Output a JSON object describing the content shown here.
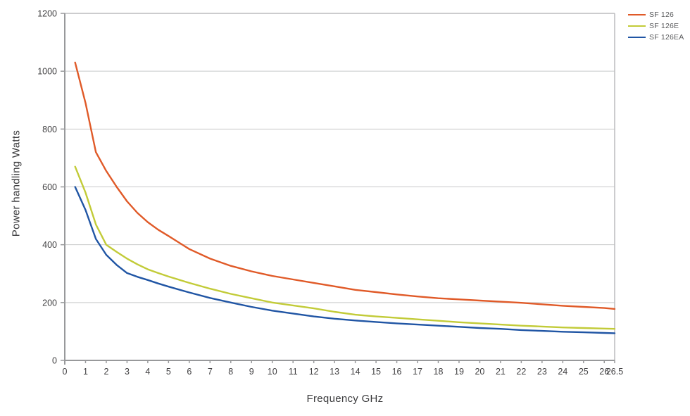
{
  "chart_data": {
    "type": "line",
    "title": "",
    "xlabel": "Frequency GHz",
    "ylabel": "Power handling Watts",
    "xlim": [
      0,
      26.5
    ],
    "ylim": [
      0,
      1200
    ],
    "x_ticks": [
      0,
      1,
      2,
      3,
      4,
      5,
      6,
      7,
      8,
      9,
      10,
      11,
      12,
      13,
      14,
      15,
      16,
      17,
      18,
      19,
      20,
      21,
      22,
      23,
      24,
      25,
      26,
      26.5
    ],
    "y_ticks": [
      0,
      200,
      400,
      600,
      800,
      1000,
      1200
    ],
    "grid": "horizontal-only",
    "legend_position": "top-right-outside",
    "x": [
      0.5,
      1,
      1.5,
      2,
      2.5,
      3,
      3.5,
      4,
      4.5,
      5,
      6,
      7,
      8,
      9,
      10,
      11,
      12,
      13,
      14,
      15,
      16,
      17,
      18,
      19,
      20,
      21,
      22,
      23,
      24,
      25,
      26,
      26.5
    ],
    "series": [
      {
        "name": "SF 126",
        "color": "#E05A28",
        "values": [
          1030,
          890,
          720,
          655,
          600,
          550,
          510,
          478,
          452,
          430,
          385,
          352,
          327,
          308,
          292,
          280,
          268,
          256,
          244,
          236,
          228,
          221,
          215,
          211,
          207,
          203,
          199,
          194,
          189,
          185,
          181,
          178
        ]
      },
      {
        "name": "SF 126E",
        "color": "#C2CB38",
        "values": [
          670,
          580,
          470,
          400,
          375,
          352,
          332,
          315,
          302,
          290,
          268,
          248,
          230,
          215,
          200,
          190,
          180,
          168,
          158,
          152,
          147,
          142,
          137,
          132,
          128,
          124,
          120,
          117,
          114,
          112,
          110,
          109
        ]
      },
      {
        "name": "SF 126EA",
        "color": "#2055A4",
        "values": [
          600,
          520,
          420,
          365,
          330,
          302,
          289,
          278,
          266,
          255,
          235,
          216,
          200,
          185,
          172,
          162,
          152,
          144,
          138,
          133,
          128,
          124,
          120,
          116,
          112,
          109,
          105,
          102,
          99,
          97,
          95,
          94
        ]
      }
    ],
    "colors": {
      "grid": "#c8c9ca",
      "axis": "#98999b",
      "border": "#bbbcbd",
      "tick_text": "#414042",
      "axis_title_text": "#3a3a3c",
      "legend_text": "#58595b",
      "background": "#ffffff"
    }
  }
}
